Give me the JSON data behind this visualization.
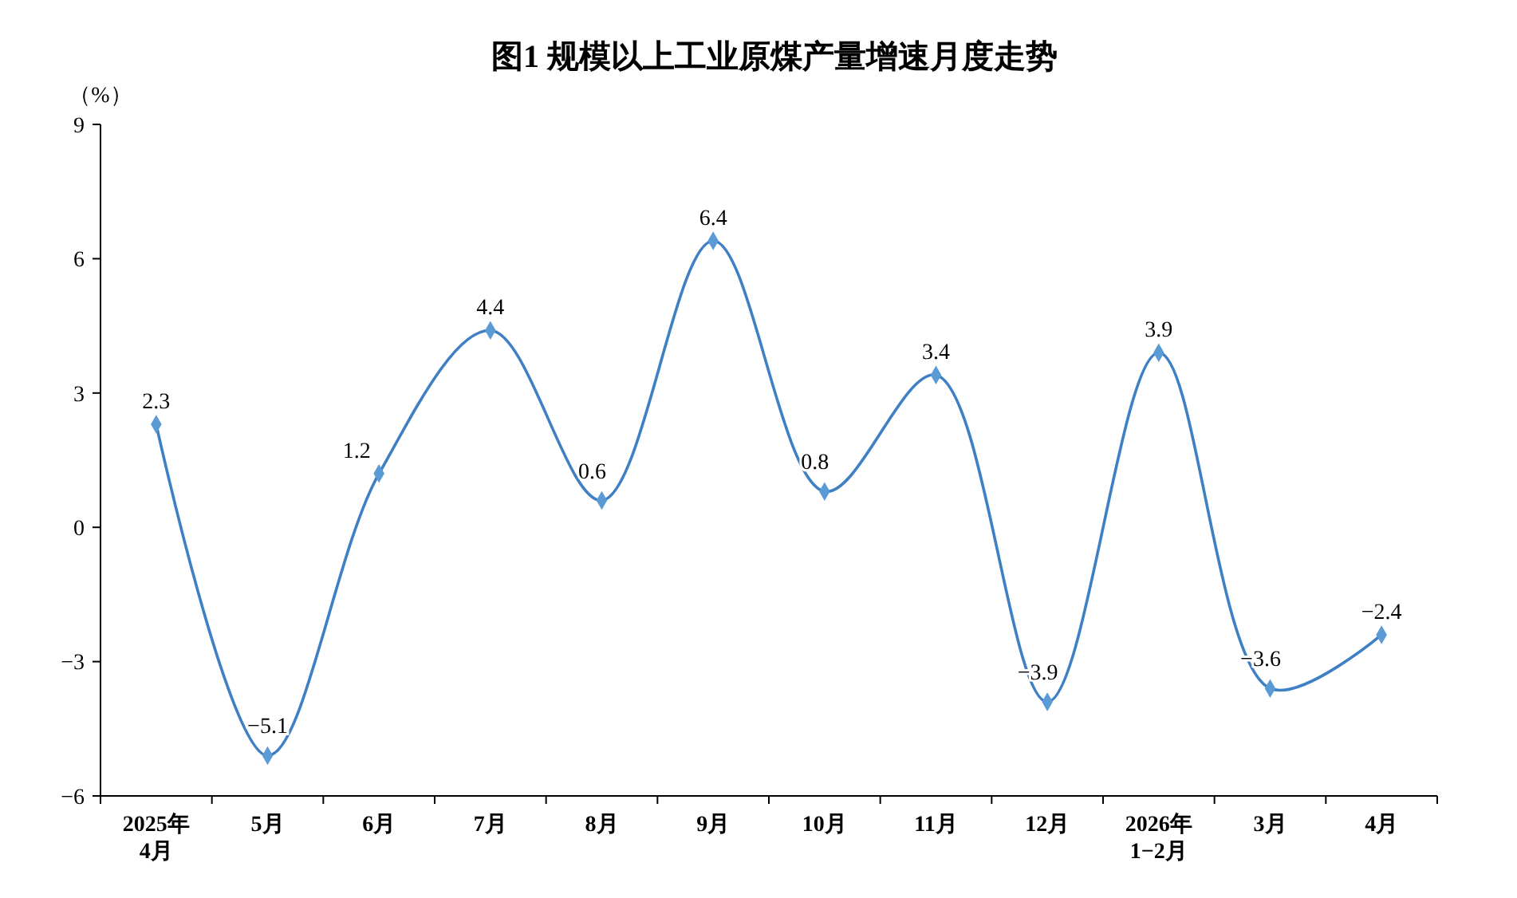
{
  "chart_data": {
    "type": "line",
    "title": "图1 规模以上工业原煤产量增速月度走势",
    "ylabel": "（%）",
    "categories": [
      "2025年\n4月",
      "5月",
      "6月",
      "7月",
      "8月",
      "9月",
      "10月",
      "11月",
      "12月",
      "2026年\n1−2月",
      "3月",
      "4月"
    ],
    "series": [
      {
        "color": "#3f7fc4",
        "values": [
          2.3,
          -5.1,
          1.2,
          4.4,
          0.6,
          6.4,
          0.8,
          3.4,
          -3.9,
          3.9,
          -3.6,
          -2.4
        ],
        "value_labels": [
          "2.3",
          "−5.1",
          "1.2",
          "4.4",
          "0.6",
          "6.4",
          "0.8",
          "3.4",
          "−3.9",
          "3.9",
          "−3.6",
          "−2.4"
        ]
      }
    ],
    "ylim": [
      -6,
      9
    ],
    "yticks": [
      {
        "value": -6,
        "label": "−6"
      },
      {
        "value": -3,
        "label": "−3"
      },
      0,
      3,
      6,
      9
    ],
    "marker": "diamond"
  }
}
